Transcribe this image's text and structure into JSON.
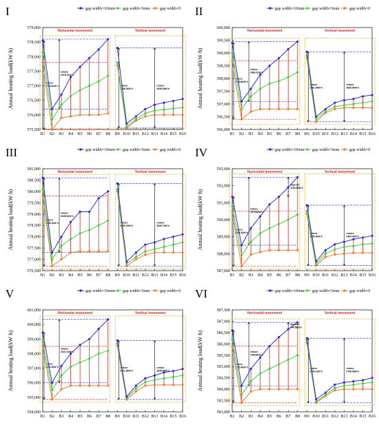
{
  "figure": {
    "colors": {
      "gap10": "#2b2bd6",
      "gap5": "#3fcf3f",
      "gap0": "#f07a2a",
      "vline": "#d62728",
      "section_box": "#e8a317",
      "ref_dash": "#3a3ae0"
    }
  },
  "chart_data": [
    {
      "type": "line",
      "roman": "I",
      "ylabel": "Annual heating load(kW·h)",
      "ylim": [
        575500,
        579000
      ],
      "yticks": [
        "575,500",
        "576,000",
        "576,500",
        "577,000",
        "577,500",
        "578,000",
        "578,500",
        "579,000"
      ],
      "categories": [
        "B1",
        "B2",
        "B3",
        "B4",
        "B5",
        "B6",
        "B7",
        "B8",
        "B9",
        "B10",
        "B11",
        "B12",
        "B13",
        "B14",
        "B15",
        "B16"
      ],
      "sections": [
        "Horizontal movement",
        "Vertical movement"
      ],
      "legend": [
        "gap width=10mm",
        "gap width=5mm",
        "gap width=0"
      ],
      "series": [
        {
          "name": "gap width=10mm",
          "values": [
            578550,
            576200,
            576700,
            577300,
            577650,
            577950,
            578250,
            578600,
            578300,
            575700,
            575950,
            576200,
            576350,
            576420,
            576480,
            576550
          ]
        },
        {
          "name": "gap width=5mm",
          "values": [
            578150,
            575850,
            576350,
            576650,
            576850,
            577000,
            577150,
            577350,
            577800,
            575600,
            575850,
            576050,
            576150,
            576180,
            576220,
            576260
          ]
        },
        {
          "name": "gap width=0",
          "values": [
            577800,
            575500,
            575900,
            575950,
            576000,
            576000,
            576000,
            576050,
            577700,
            575550,
            575800,
            575950,
            576000,
            576000,
            576000,
            576000
          ]
        }
      ],
      "annotations": [
        {
          "label": "reduce",
          "value": "2478.7kW·h"
        },
        {
          "label": "reduce",
          "value": "2728.1kW·h"
        },
        {
          "label": "reduce",
          "value": "2646.8kW·h"
        },
        {
          "label": "reduce",
          "value": "2786.3kW·h"
        }
      ]
    },
    {
      "type": "line",
      "roman": "II",
      "ylabel": "Annual heating load(kW·h)",
      "ylim": [
        596000,
        600000
      ],
      "yticks": [
        "596,000",
        "596,500",
        "597,000",
        "597,500",
        "598,000",
        "598,500",
        "599,000",
        "599,500",
        "600,000"
      ],
      "categories": [
        "B1",
        "B2",
        "B3",
        "B4",
        "B5",
        "B6",
        "B7",
        "B8",
        "B9",
        "B10",
        "B11",
        "B12",
        "B13",
        "B14",
        "B15",
        "B16"
      ],
      "sections": [
        "Horizontal movement",
        "Vertical movement"
      ],
      "legend": [
        "gap width=10mm",
        "gap width=5mm",
        "gap width=0"
      ],
      "series": [
        {
          "name": "gap width=10mm",
          "values": [
            599400,
            597100,
            597600,
            598150,
            598500,
            598800,
            599150,
            599450,
            599050,
            596500,
            596800,
            597050,
            597150,
            597200,
            597300,
            597350
          ]
        },
        {
          "name": "gap width=5mm",
          "values": [
            599000,
            596800,
            597300,
            597600,
            597800,
            597900,
            598050,
            598250,
            598900,
            596400,
            596700,
            596900,
            596950,
            597000,
            597050,
            597100
          ]
        },
        {
          "name": "gap width=0",
          "values": [
            598700,
            596400,
            596700,
            596800,
            596800,
            596800,
            596800,
            596800,
            598800,
            596300,
            596650,
            596800,
            596850,
            596850,
            596850,
            596850
          ]
        }
      ],
      "annotations": [
        {
          "label": "reduce",
          "value": "2566.7kW·h"
        },
        {
          "label": "reduce",
          "value": "2705.8kW·h"
        },
        {
          "label": "reduce",
          "value": "2638.9kW·h"
        },
        {
          "label": "reduce",
          "value": "2791.9kW·h"
        }
      ]
    },
    {
      "type": "line",
      "roman": "III",
      "ylabel": "Annual heating load(kW·h)",
      "ylim": [
        576500,
        581000
      ],
      "yticks": [
        "576,500",
        "577,000",
        "577,500",
        "578,000",
        "578,500",
        "579,000",
        "579,500",
        "580,000",
        "580,500",
        "581,000"
      ],
      "categories": [
        "B1",
        "B2",
        "B3",
        "B4",
        "B5",
        "B6",
        "B7",
        "B8",
        "B9",
        "B10",
        "B11",
        "B12",
        "B13",
        "B14",
        "B15",
        "B16"
      ],
      "sections": [
        "Horizontal movement",
        "Vertical movement"
      ],
      "legend": [
        "gap width=10mm",
        "gap width=5mm",
        "gap width=0"
      ],
      "series": [
        {
          "name": "gap width=10mm",
          "values": [
            580600,
            577300,
            578000,
            578650,
            579100,
            579100,
            579700,
            580000,
            580350,
            576900,
            577300,
            577650,
            577750,
            577900,
            578000,
            578100
          ]
        },
        {
          "name": "gap width=5mm",
          "values": [
            580100,
            577000,
            577600,
            577900,
            578150,
            578300,
            578500,
            578700,
            580100,
            576800,
            577100,
            577350,
            577450,
            577550,
            577650,
            577750
          ]
        },
        {
          "name": "gap width=0",
          "values": [
            579800,
            576700,
            577000,
            577300,
            577350,
            577350,
            577350,
            577350,
            580000,
            576700,
            577000,
            577200,
            577300,
            577300,
            577300,
            577300
          ]
        }
      ],
      "annotations": [
        {
          "label": "reduce",
          "value": "3345.2kW·h"
        },
        {
          "label": "reduce",
          "value": "3636.1kW·h"
        },
        {
          "label": "reduce",
          "value": "3540.7kW·h"
        },
        {
          "label": "reduce",
          "value": "3695.7kW·h"
        }
      ]
    },
    {
      "type": "line",
      "roman": "IV",
      "ylabel": "Annual heating load(kW·h)",
      "ylim": [
        587000,
        593000
      ],
      "yticks": [
        "587,000",
        "588,000",
        "589,000",
        "590,000",
        "591,000",
        "592,000",
        "593,000"
      ],
      "categories": [
        "B1",
        "B2",
        "B3",
        "B4",
        "B5",
        "B6",
        "B7",
        "B8",
        "B9",
        "B10",
        "B11",
        "B12",
        "B13",
        "B14",
        "B15",
        "B16"
      ],
      "sections": [
        "Horizontal movement",
        "Vertical movement"
      ],
      "legend": [
        "gap width=10mm",
        "gap width=5mm",
        "gap width=0"
      ],
      "series": [
        {
          "name": "gap width=10mm",
          "values": [
            591350,
            588500,
            589500,
            590200,
            590900,
            591350,
            591900,
            592500,
            590850,
            587550,
            588200,
            588550,
            588700,
            588850,
            588950,
            589050
          ]
        },
        {
          "name": "gap width=5mm",
          "values": [
            590800,
            587900,
            588700,
            589200,
            589500,
            589750,
            590000,
            590300,
            590500,
            587400,
            588000,
            588250,
            588400,
            588450,
            588550,
            588600
          ]
        },
        {
          "name": "gap width=0",
          "values": [
            590500,
            587250,
            587950,
            588100,
            588200,
            588200,
            588200,
            588200,
            590350,
            587300,
            587800,
            587950,
            588000,
            588050,
            588050,
            588050
          ]
        }
      ],
      "annotations": [
        {
          "label": "improve",
          "value": "1125.0kW·h"
        },
        {
          "label": "reduce",
          "value": "2979.6kW·h"
        },
        {
          "label": "reduce",
          "value": "3504.3kW·h"
        },
        {
          "label": "reduce",
          "value": "3484.4kW·h"
        },
        {
          "label": "reduce",
          "value": "3595.9kW·h"
        }
      ]
    },
    {
      "type": "line",
      "roman": "V",
      "ylabel": "Annual heating load(kW·h)",
      "ylim": [
        594000,
        601000
      ],
      "yticks": [
        "594,000",
        "595,000",
        "596,000",
        "597,000",
        "598,000",
        "599,000",
        "600,000",
        "601,000"
      ],
      "categories": [
        "B1",
        "B2",
        "B3",
        "B4",
        "B5",
        "B6",
        "B7",
        "B8",
        "B9",
        "B10",
        "B11",
        "B12",
        "B13",
        "B14",
        "B15",
        "B16"
      ],
      "sections": [
        "Horizontal movement",
        "Vertical movement"
      ],
      "legend": [
        "gap width=10mm",
        "gap width=5mm",
        "gap width=0"
      ],
      "series": [
        {
          "name": "gap width=10mm",
          "values": [
            599450,
            596000,
            597150,
            598000,
            598600,
            599000,
            599700,
            600350,
            598900,
            595050,
            595800,
            596300,
            596500,
            596700,
            596800,
            596950
          ]
        },
        {
          "name": "gap width=5mm",
          "values": [
            598800,
            595500,
            596500,
            597100,
            597400,
            597650,
            598000,
            598200,
            598700,
            594950,
            595600,
            596050,
            596200,
            596300,
            596400,
            596500
          ]
        },
        {
          "name": "gap width=0",
          "values": [
            598500,
            594850,
            595550,
            595800,
            595800,
            595800,
            595800,
            595800,
            598550,
            594850,
            595400,
            595800,
            595850,
            595850,
            595850,
            595850
          ]
        }
      ],
      "annotations": [
        {
          "label": "reduce",
          "value": "3447.1kW·h"
        },
        {
          "label": "reduce",
          "value": "3891.4kW·h"
        },
        {
          "label": "reduce",
          "value": "3848.8kW·h"
        },
        {
          "label": "reduce",
          "value": "3991.9kW·h"
        }
      ]
    },
    {
      "type": "line",
      "roman": "VI",
      "ylabel": "Annual heating load(kW·h)",
      "ylim": [
        583000,
        587500
      ],
      "yticks": [
        "583,000",
        "583,500",
        "584,000",
        "584,500",
        "585,000",
        "585,500",
        "586,000",
        "586,500",
        "587,000",
        "587,500"
      ],
      "categories": [
        "B1",
        "B2",
        "B3",
        "B4",
        "B5",
        "B6",
        "B7",
        "B8",
        "B9",
        "B10",
        "B11",
        "B12",
        "B13",
        "B14",
        "B15",
        "B16"
      ],
      "sections": [
        "Horizontal movement",
        "Vertical movement"
      ],
      "legend": [
        "gap width=10mm",
        "gap width=5mm",
        "gap width=0"
      ],
      "series": [
        {
          "name": "gap width=10mm",
          "values": [
            586600,
            584150,
            584900,
            585400,
            585900,
            586300,
            586650,
            586950,
            586250,
            583550,
            583850,
            584200,
            584300,
            584350,
            584400,
            584500
          ]
        },
        {
          "name": "gap width=5mm",
          "values": [
            586200,
            583750,
            584350,
            584700,
            584900,
            585100,
            585300,
            585500,
            586150,
            583450,
            583750,
            584050,
            584150,
            584200,
            584250,
            584300
          ]
        },
        {
          "name": "gap width=0",
          "values": [
            585900,
            583400,
            583900,
            584000,
            584000,
            584000,
            584000,
            584000,
            586050,
            583400,
            583700,
            583950,
            584000,
            584000,
            584000,
            584000
          ]
        }
      ],
      "annotations": [
        {
          "label": "improve",
          "value": "344.5kW·h"
        },
        {
          "label": "reduce",
          "value": "2459.9kW·h"
        },
        {
          "label": "reduce",
          "value": "2795.4kW·h"
        },
        {
          "label": "reduce",
          "value": "2708.9kW·h"
        },
        {
          "label": "reduce",
          "value": "2799.1kW·h"
        }
      ]
    }
  ]
}
